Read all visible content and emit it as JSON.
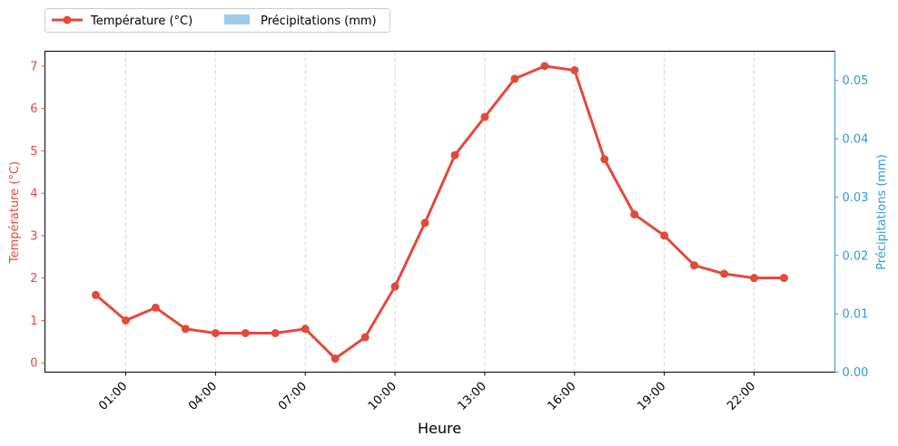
{
  "chart_data": {
    "type": "line",
    "xlabel": "Heure",
    "ylabel_left": "Température (°C)",
    "ylabel_right": "Précipitations (mm)",
    "x_hours": [
      0,
      1,
      2,
      3,
      4,
      5,
      6,
      7,
      8,
      9,
      10,
      11,
      12,
      13,
      14,
      15,
      16,
      17,
      18,
      19,
      20,
      21,
      22,
      23
    ],
    "x_tick_labels": [
      "01:00",
      "04:00",
      "07:00",
      "10:00",
      "13:00",
      "16:00",
      "19:00",
      "22:00"
    ],
    "x_tick_hours": [
      1,
      4,
      7,
      10,
      13,
      16,
      19,
      22
    ],
    "xlim_hours": [
      -1.7,
      24.7
    ],
    "left_axis": {
      "ylim": [
        -0.22,
        7.35
      ],
      "ticks": [
        0,
        1,
        2,
        3,
        4,
        5,
        6,
        7
      ],
      "color": "#e24a3b"
    },
    "right_axis": {
      "ylim": [
        0,
        0.055
      ],
      "ticks": [
        0.0,
        0.01,
        0.02,
        0.03,
        0.04,
        0.05
      ],
      "tick_labels": [
        "0.00",
        "0.01",
        "0.02",
        "0.03",
        "0.04",
        "0.05"
      ],
      "color": "#3498db"
    },
    "series": [
      {
        "name": "Température (°C)",
        "type": "line",
        "color": "#e24a3b",
        "axis": "left",
        "values": [
          1.6,
          1.0,
          1.3,
          0.8,
          0.7,
          0.7,
          0.7,
          0.8,
          0.1,
          0.6,
          1.8,
          3.3,
          4.9,
          5.8,
          6.7,
          7.0,
          6.9,
          4.8,
          3.5,
          3.0,
          2.3,
          2.1,
          2.0,
          2.0
        ]
      },
      {
        "name": "Précipitations (mm)",
        "type": "bar",
        "color": "#9ccbeb",
        "axis": "right",
        "values": [
          0,
          0,
          0,
          0,
          0,
          0,
          0,
          0,
          0,
          0,
          0,
          0,
          0,
          0,
          0,
          0,
          0,
          0,
          0,
          0,
          0,
          0,
          0,
          0
        ]
      }
    ],
    "grid": "x-dashed",
    "legend": "top-left-outside"
  }
}
